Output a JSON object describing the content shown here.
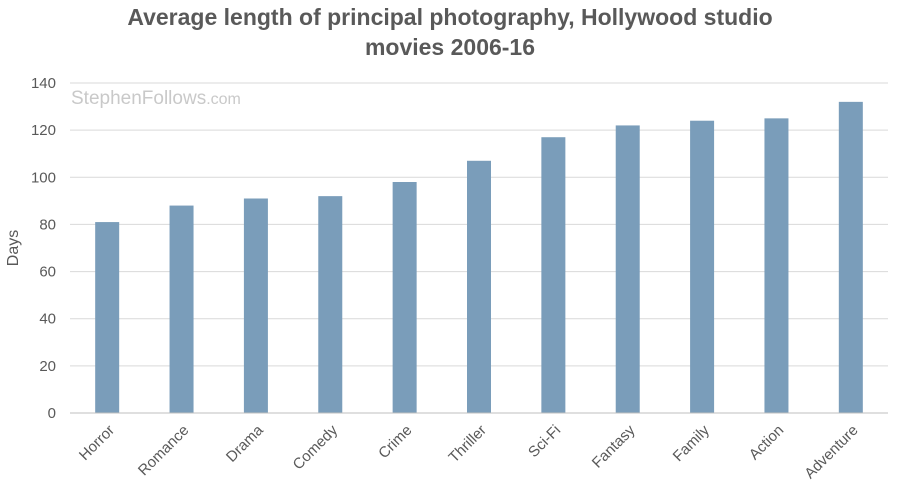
{
  "chart_data": {
    "type": "bar",
    "title_lines": [
      "Average length of principal photography, Hollywood studio",
      "movies 2006-16"
    ],
    "watermark": {
      "name": "StephenFollows",
      "suffix": ".com"
    },
    "xlabel": "",
    "ylabel": "Days",
    "ylim": [
      0,
      140
    ],
    "yticks": [
      0,
      20,
      40,
      60,
      80,
      100,
      120,
      140
    ],
    "grid": true,
    "legend": "none",
    "bar_color": "#7a9dba",
    "categories": [
      "Horror",
      "Romance",
      "Drama",
      "Comedy",
      "Crime",
      "Thriller",
      "Sci-Fi",
      "Fantasy",
      "Family",
      "Action",
      "Adventure"
    ],
    "values": [
      81,
      88,
      91,
      92,
      98,
      107,
      117,
      122,
      124,
      125,
      132
    ]
  }
}
